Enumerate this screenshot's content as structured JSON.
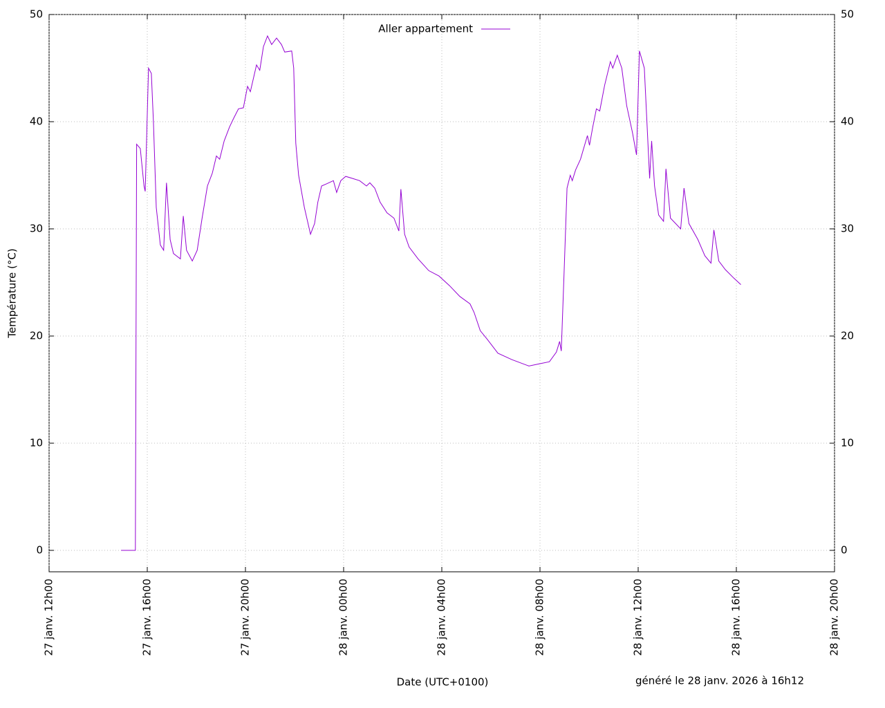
{
  "chart_data": {
    "type": "line",
    "ylabel": "Température (°C)",
    "xlabel": "Date (UTC+0100)",
    "footer": "généré le 28 janv. 2026 à 16h12",
    "legend": "top-center",
    "grid": true,
    "ylim": [
      -2,
      50
    ],
    "yticks": [
      0,
      10,
      20,
      30,
      40,
      50
    ],
    "y2lim": [
      -2,
      50
    ],
    "y2ticks": [
      0,
      10,
      20,
      30,
      40,
      50
    ],
    "xlim": [
      "27 janv. 12h00",
      "28 janv. 20h00"
    ],
    "xticks": [
      "27 janv. 12h00",
      "27 janv. 16h00",
      "27 janv. 20h00",
      "28 janv. 00h00",
      "28 janv. 04h00",
      "28 janv. 08h00",
      "28 janv. 12h00",
      "28 janv. 16h00",
      "28 janv. 20h00"
    ],
    "x": [
      "27 janv. 14h56",
      "27 janv. 15h31",
      "27 janv. 15h34",
      "27 janv. 15h43",
      "27 janv. 15h52",
      "27 janv. 15h55",
      "27 janv. 16h03",
      "27 janv. 16h10",
      "27 janv. 16h15",
      "27 janv. 16h22",
      "27 janv. 16h32",
      "27 janv. 16h40",
      "27 janv. 16h47",
      "27 janv. 16h56",
      "27 janv. 17h04",
      "27 janv. 17h21",
      "27 janv. 17h28",
      "27 janv. 17h36",
      "27 janv. 17h50",
      "27 janv. 18h02",
      "27 janv. 18h14",
      "27 janv. 18h27",
      "27 janv. 18h39",
      "27 janv. 18h49",
      "27 janv. 18h57",
      "27 janv. 19h08",
      "27 janv. 19h21",
      "27 janv. 19h31",
      "27 janv. 19h43",
      "27 janv. 19h55",
      "27 janv. 20h05",
      "27 janv. 20h12",
      "27 janv. 20h27",
      "27 janv. 20h35",
      "27 janv. 20h44",
      "27 janv. 20h54",
      "27 janv. 21h04",
      "27 janv. 21h16",
      "27 janv. 21h28",
      "27 janv. 21h36",
      "27 janv. 21h53",
      "27 janv. 21h58",
      "27 janv. 22h03",
      "27 janv. 22h10",
      "27 janv. 22h24",
      "27 janv. 22h39",
      "27 janv. 22h49",
      "27 janv. 22h57",
      "27 janv. 23h06",
      "27 janv. 23h18",
      "27 janv. 23h35",
      "27 janv. 23h43",
      "27 janv. 23h53",
      "28 janv. 00h05",
      "28 janv. 00h22",
      "28 janv. 00h39",
      "28 janv. 00h56",
      "28 janv. 01h04",
      "28 janv. 01h16",
      "28 janv. 01h29",
      "28 janv. 01h46",
      "28 janv. 02h03",
      "28 janv. 02h15",
      "28 janv. 02h20",
      "28 janv. 02h29",
      "28 janv. 02h40",
      "28 janv. 03h02",
      "28 janv. 03h28",
      "28 janv. 03h53",
      "28 janv. 04h19",
      "28 janv. 04h44",
      "28 janv. 05h09",
      "28 janv. 05h19",
      "28 janv. 05h34",
      "28 janv. 05h51",
      "28 janv. 06h17",
      "28 janv. 06h51",
      "28 janv. 07h33",
      "28 janv. 07h58",
      "28 janv. 08h23",
      "28 janv. 08h40",
      "28 janv. 08h48",
      "28 janv. 08h52",
      "28 janv. 08h59",
      "28 janv. 09h06",
      "28 janv. 09h14",
      "28 janv. 09h19",
      "28 janv. 09h27",
      "28 janv. 09h39",
      "28 janv. 09h56",
      "28 janv. 10h01",
      "28 janv. 10h09",
      "28 janv. 10h18",
      "28 janv. 10h26",
      "28 janv. 10h38",
      "28 janv. 10h52",
      "28 janv. 10h58",
      "28 janv. 11h09",
      "28 janv. 11h20",
      "28 janv. 11h32",
      "28 janv. 11h46",
      "28 janv. 11h56",
      "28 janv. 12h03",
      "28 janv. 12h15",
      "28 janv. 12h28",
      "28 janv. 12h33",
      "28 janv. 12h40",
      "28 janv. 12h50",
      "28 janv. 13h02",
      "28 janv. 13h08",
      "28 janv. 13h19",
      "28 janv. 13h44",
      "28 janv. 13h52",
      "28 janv. 14h04",
      "28 janv. 14h26",
      "28 janv. 14h43",
      "28 janv. 14h58",
      "28 janv. 15h05",
      "28 janv. 15h17",
      "28 janv. 15h33",
      "28 janv. 15h54",
      "28 janv. 16h11"
    ],
    "series": [
      {
        "name": "Aller appartement",
        "color": "#9400d3",
        "values": [
          0,
          0,
          37.9,
          37.5,
          34,
          33.5,
          45,
          44.5,
          40,
          32,
          28.5,
          28,
          34.3,
          29,
          27.7,
          27.2,
          31.2,
          28,
          27,
          28,
          31,
          34,
          35.2,
          36.8,
          36.5,
          38.2,
          39.5,
          40.3,
          41.2,
          41.3,
          43.3,
          42.8,
          45.3,
          44.8,
          47,
          48,
          47.2,
          47.8,
          47.2,
          46.5,
          46.6,
          45,
          38,
          35,
          32,
          29.5,
          30.5,
          32.5,
          34,
          34.2,
          34.5,
          33.4,
          34.5,
          34.9,
          34.7,
          34.5,
          34,
          34.3,
          33.8,
          32.5,
          31.5,
          31,
          29.8,
          33.7,
          29.5,
          28.3,
          27.2,
          26.1,
          25.6,
          24.7,
          23.7,
          23,
          22.2,
          20.5,
          19.7,
          18.4,
          17.8,
          17.2,
          17.4,
          17.6,
          18.5,
          19.5,
          18.6,
          26,
          33.8,
          35,
          34.5,
          35.5,
          36.5,
          38.7,
          37.8,
          39.5,
          41.2,
          41,
          43.4,
          45.6,
          45,
          46.2,
          45,
          41.5,
          39,
          36.9,
          46.6,
          45,
          34.7,
          38.2,
          34,
          31.3,
          30.7,
          35.6,
          31,
          30,
          33.8,
          30.5,
          29,
          27.5,
          26.8,
          29.9,
          27,
          26.2,
          25.4,
          24.8
        ]
      }
    ]
  }
}
